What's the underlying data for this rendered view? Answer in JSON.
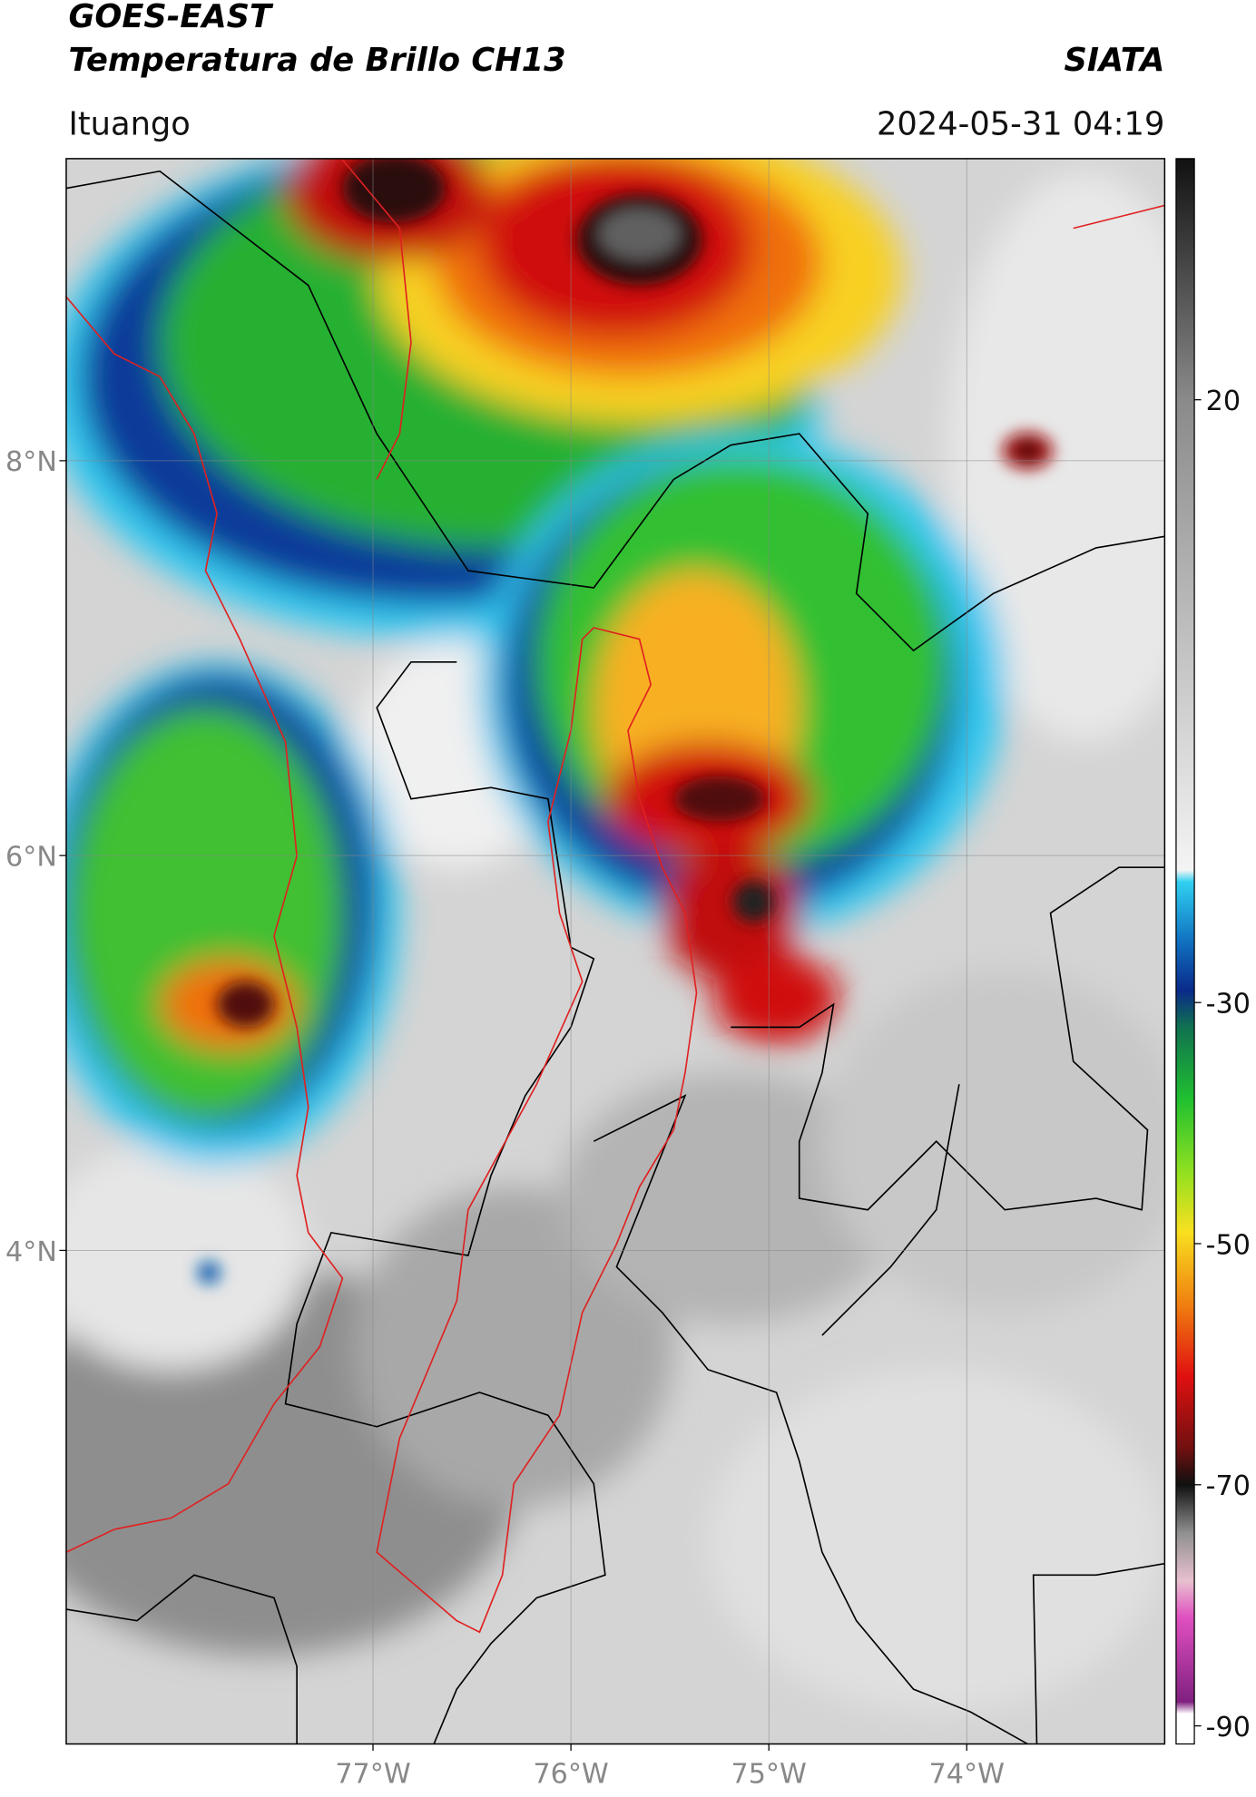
{
  "header": {
    "title": "GOES-EAST",
    "subtitle": "Temperatura de Brillo CH13",
    "source": "SIATA",
    "location": "Ituango",
    "datetime": "2024-05-31 04:19"
  },
  "map": {
    "xlim": [
      -78.55,
      -73
    ],
    "ylim": [
      1.5,
      9.53
    ],
    "xticks": [
      {
        "value": -77,
        "label": "77°W"
      },
      {
        "value": -76,
        "label": "76°W"
      },
      {
        "value": -75,
        "label": "75°W"
      },
      {
        "value": -74,
        "label": "74°W"
      }
    ],
    "yticks": [
      {
        "value": 4,
        "label": "4°N"
      },
      {
        "value": 6,
        "label": "6°N"
      },
      {
        "value": 8,
        "label": "8°N"
      }
    ],
    "grid": true
  },
  "colorbar": {
    "lim": [
      -91.5,
      40
    ],
    "ticks": [
      -90,
      -70,
      -50,
      -30,
      20
    ],
    "stops": [
      {
        "value": 40,
        "color": "#111111"
      },
      {
        "value": 20,
        "color": "#8a8a8a"
      },
      {
        "value": -19,
        "color": "#f4f4f4"
      },
      {
        "value": -20,
        "color": "#30d0f0"
      },
      {
        "value": -25,
        "color": "#1070c0"
      },
      {
        "value": -29,
        "color": "#0a2a8a"
      },
      {
        "value": -32,
        "color": "#107050"
      },
      {
        "value": -38,
        "color": "#20c030"
      },
      {
        "value": -44,
        "color": "#90e020"
      },
      {
        "value": -49,
        "color": "#f8e020"
      },
      {
        "value": -55,
        "color": "#f08010"
      },
      {
        "value": -61,
        "color": "#e01010"
      },
      {
        "value": -67,
        "color": "#701010"
      },
      {
        "value": -70,
        "color": "#101010"
      },
      {
        "value": -74,
        "color": "#909090"
      },
      {
        "value": -78,
        "color": "#e8c0d0"
      },
      {
        "value": -81,
        "color": "#e050c0"
      },
      {
        "value": -88,
        "color": "#802080"
      },
      {
        "value": -89,
        "color": "#ffffff"
      },
      {
        "value": -91.5,
        "color": "#ffffff"
      }
    ]
  }
}
